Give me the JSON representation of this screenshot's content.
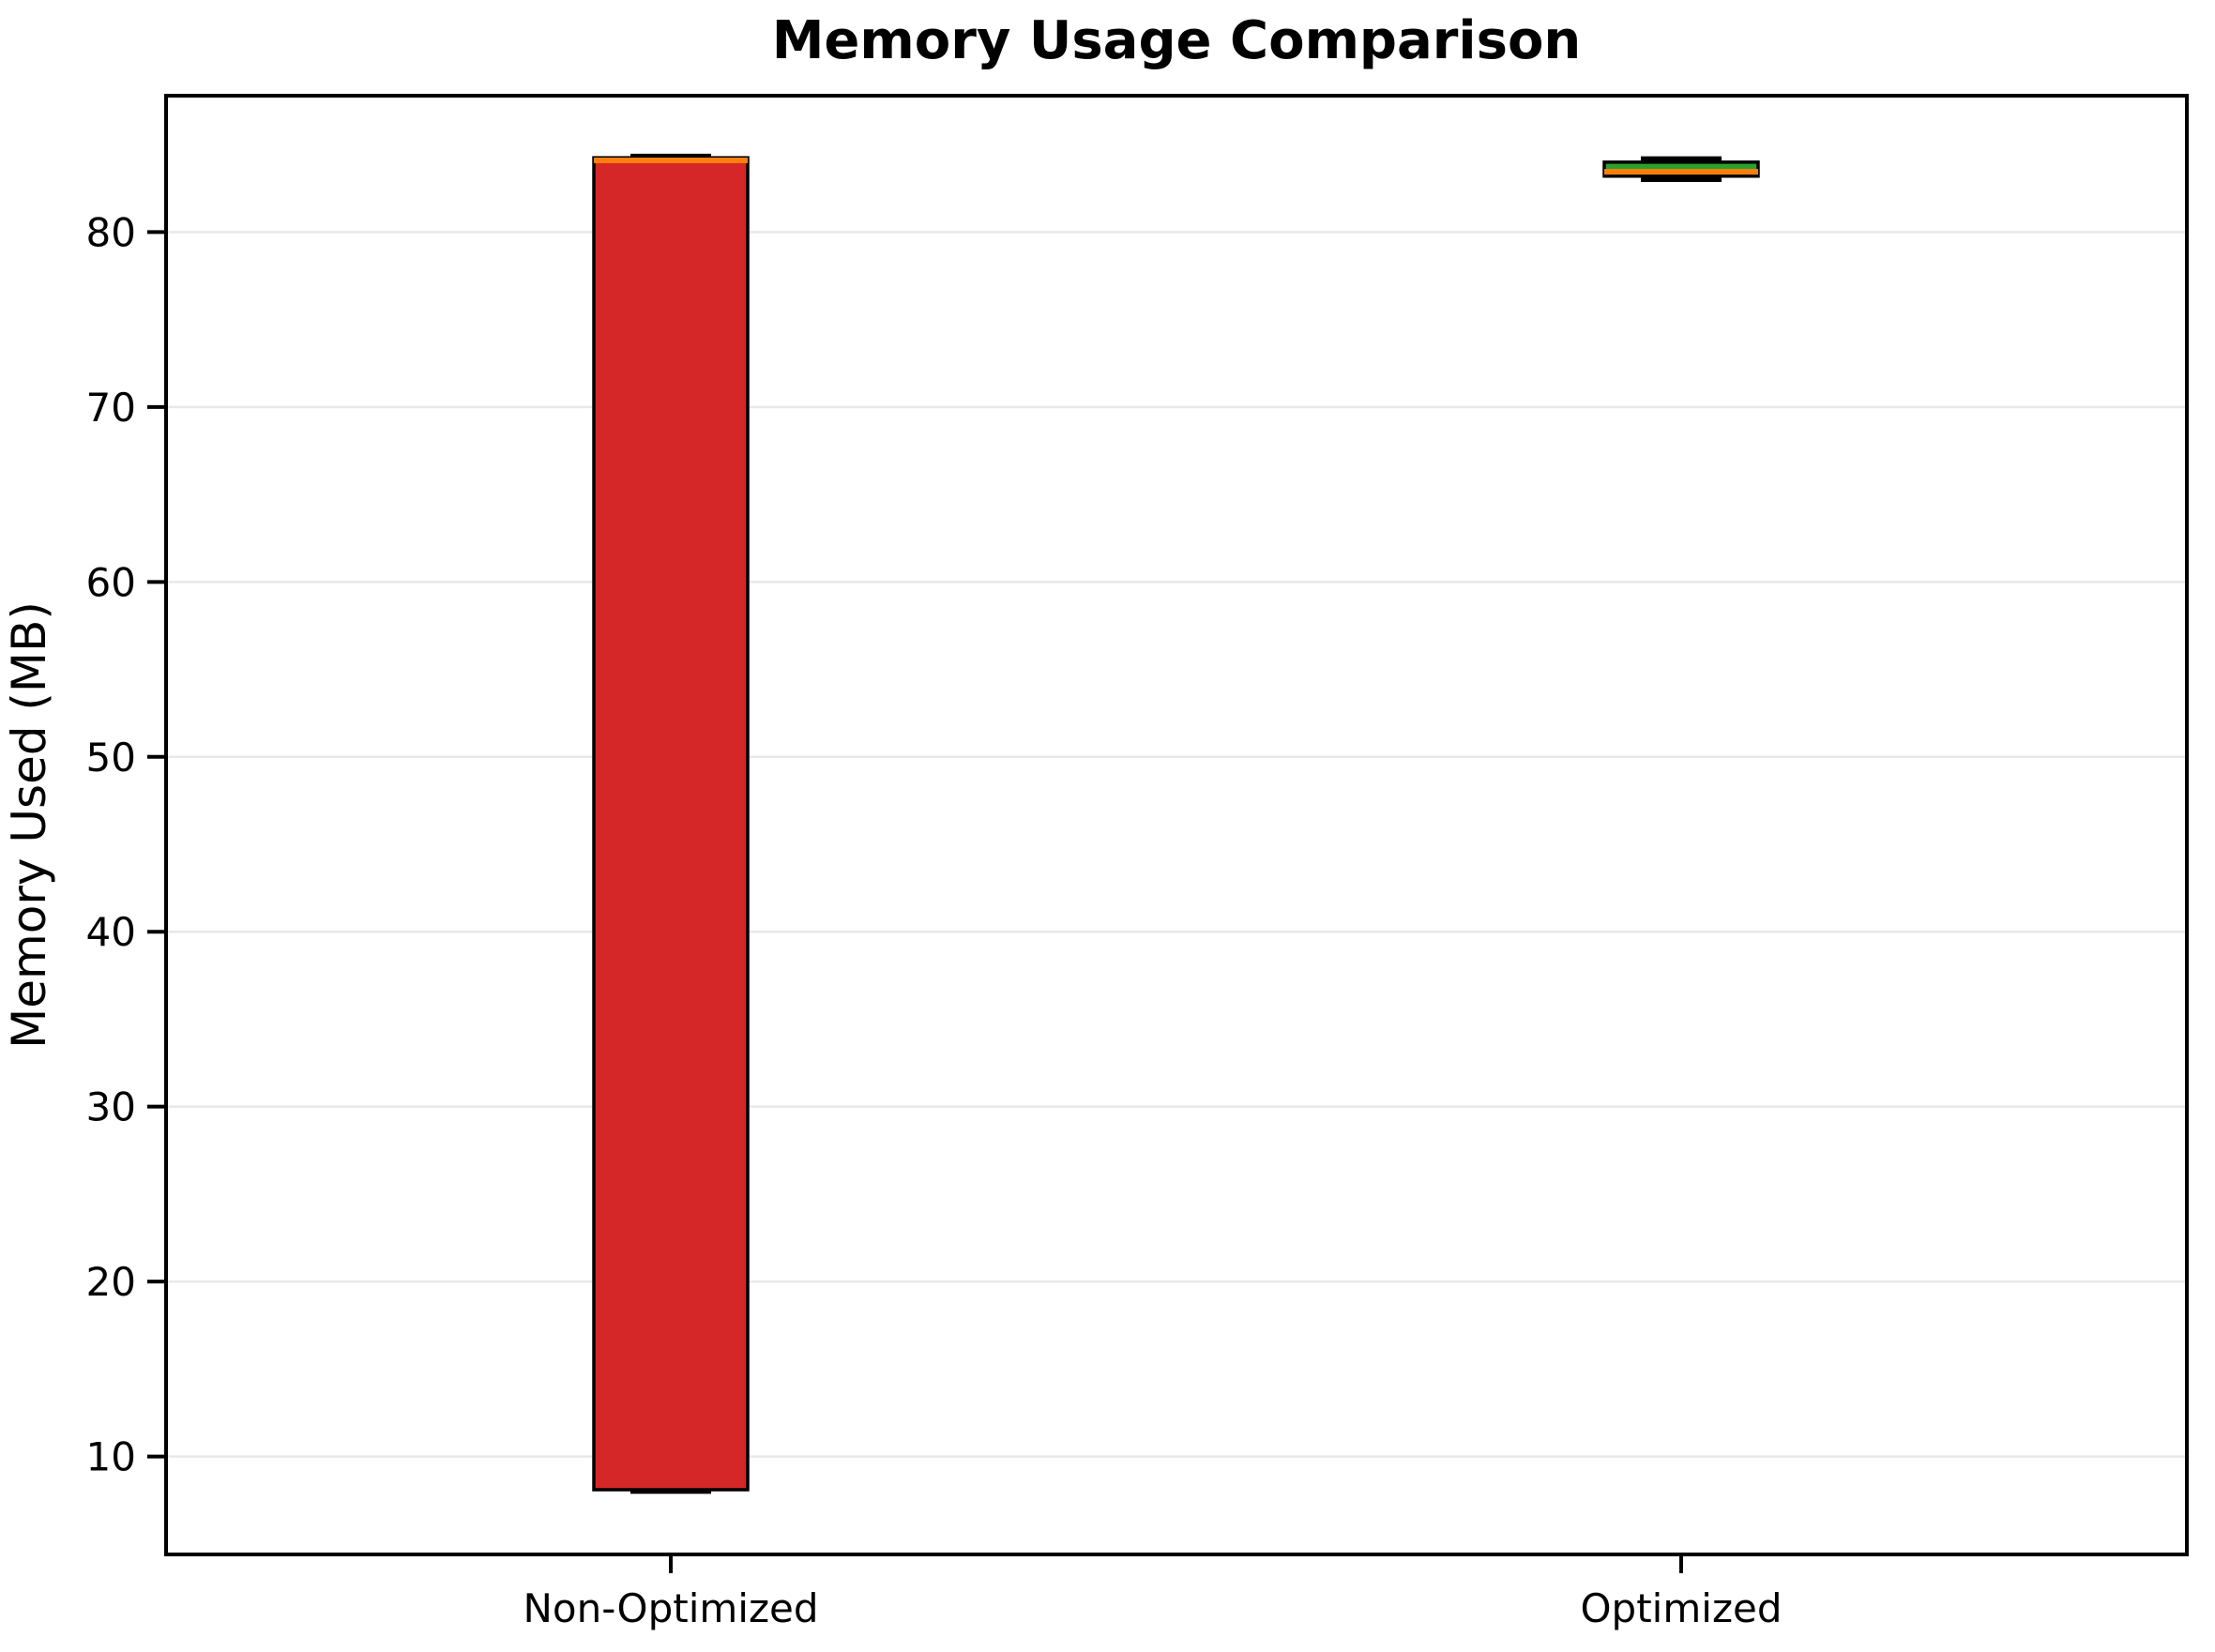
{
  "figure": {
    "title": "Memory Usage Comparison",
    "ylabel": "Memory Used (MB)",
    "background_color": "#ffffff"
  },
  "chart_data": {
    "type": "boxplot",
    "title": "Memory Usage Comparison",
    "xlabel": "",
    "ylabel": "Memory Used (MB)",
    "categories": [
      "Non-Optimized",
      "Optimized"
    ],
    "series": [
      {
        "name": "Non-Optimized",
        "whisker_low": 8.0,
        "q1": 8.1,
        "median": 84.1,
        "q3": 84.25,
        "whisker_high": 84.35,
        "box_color": "#d62728"
      },
      {
        "name": "Optimized",
        "whisker_low": 83.0,
        "q1": 83.2,
        "median": 83.45,
        "q3": 84.0,
        "whisker_high": 84.2,
        "box_color": "#2ca02c"
      }
    ],
    "yticks": [
      10,
      20,
      30,
      40,
      50,
      60,
      70,
      80
    ],
    "ylim": [
      4.4,
      87.8
    ],
    "grid": "horizontal-light",
    "legend": "none",
    "colors": {
      "median_line": "#ff7f0e",
      "box_edge": "#000000",
      "whisker": "#000000",
      "cap": "#000000",
      "grid_line": "#e8e8e8",
      "spine": "#000000",
      "text": "#000000"
    }
  }
}
